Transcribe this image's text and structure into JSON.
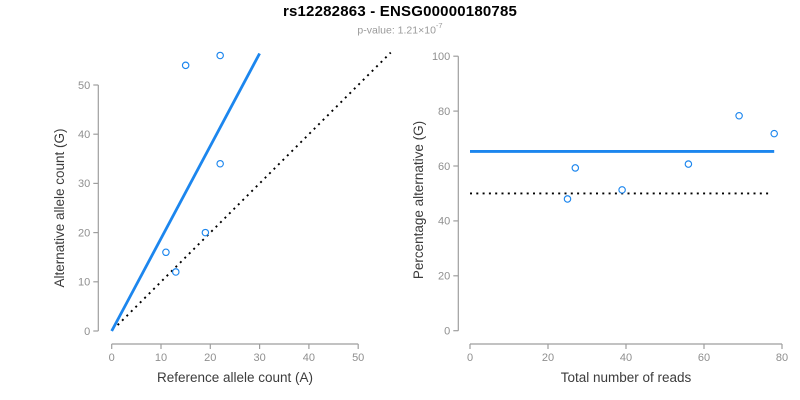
{
  "header": {
    "title": "rs12282863 - ENSG00000180785",
    "p_value_label": "p-value: 1.21×10",
    "p_value_exponent": "-7"
  },
  "colors": {
    "blue": "#1c86ee",
    "black": "#000000",
    "axis": "#9e9e9e",
    "tick_label": "#8f8f8f",
    "axis_title": "#3c3c3c",
    "title": "#000000",
    "subtitle": "#9a9a9a"
  },
  "chart_data": [
    {
      "type": "scatter",
      "panel": "counts",
      "xlabel": "Reference allele count (A)",
      "ylabel": "Alternative allele count (G)",
      "xlim": [
        0,
        57
      ],
      "ylim": [
        0,
        57
      ],
      "x_ticks": [
        0,
        10,
        20,
        30,
        40,
        50
      ],
      "y_ticks": [
        0,
        10,
        20,
        30,
        40,
        50
      ],
      "grid": false,
      "legend": null,
      "points": [
        [
          11,
          16
        ],
        [
          13,
          12
        ],
        [
          15,
          54
        ],
        [
          19,
          20
        ],
        [
          22,
          34
        ],
        [
          22,
          56
        ]
      ],
      "lines": [
        {
          "name": "fit-line",
          "x1": 0,
          "y1": 0,
          "x2": 30,
          "y2": 56.4,
          "style": "solid",
          "color_key": "blue"
        },
        {
          "name": "identity-line",
          "x1": 1.2,
          "y1": 1.2,
          "x2": 56.6,
          "y2": 56.6,
          "style": "dotted",
          "color_key": "black"
        }
      ]
    },
    {
      "type": "scatter",
      "panel": "percentage",
      "xlabel": "Total number of reads",
      "ylabel": "Percentage alternative (G)",
      "xlim": [
        0,
        80
      ],
      "ylim": [
        0,
        100
      ],
      "x_ticks": [
        0,
        20,
        40,
        60,
        80
      ],
      "y_ticks": [
        0,
        20,
        40,
        60,
        80,
        100
      ],
      "grid": false,
      "legend": null,
      "points": [
        [
          25,
          48.0
        ],
        [
          27,
          59.3
        ],
        [
          39,
          51.3
        ],
        [
          56,
          60.7
        ],
        [
          69,
          78.3
        ],
        [
          78,
          71.8
        ]
      ],
      "lines": [
        {
          "name": "mean-line",
          "x1": 0,
          "y1": 65.3,
          "x2": 78,
          "y2": 65.3,
          "style": "solid",
          "color_key": "blue"
        },
        {
          "name": "null-line",
          "x1": 0,
          "y1": 50,
          "x2": 76.5,
          "y2": 50,
          "style": "dotted",
          "color_key": "black"
        }
      ]
    }
  ]
}
